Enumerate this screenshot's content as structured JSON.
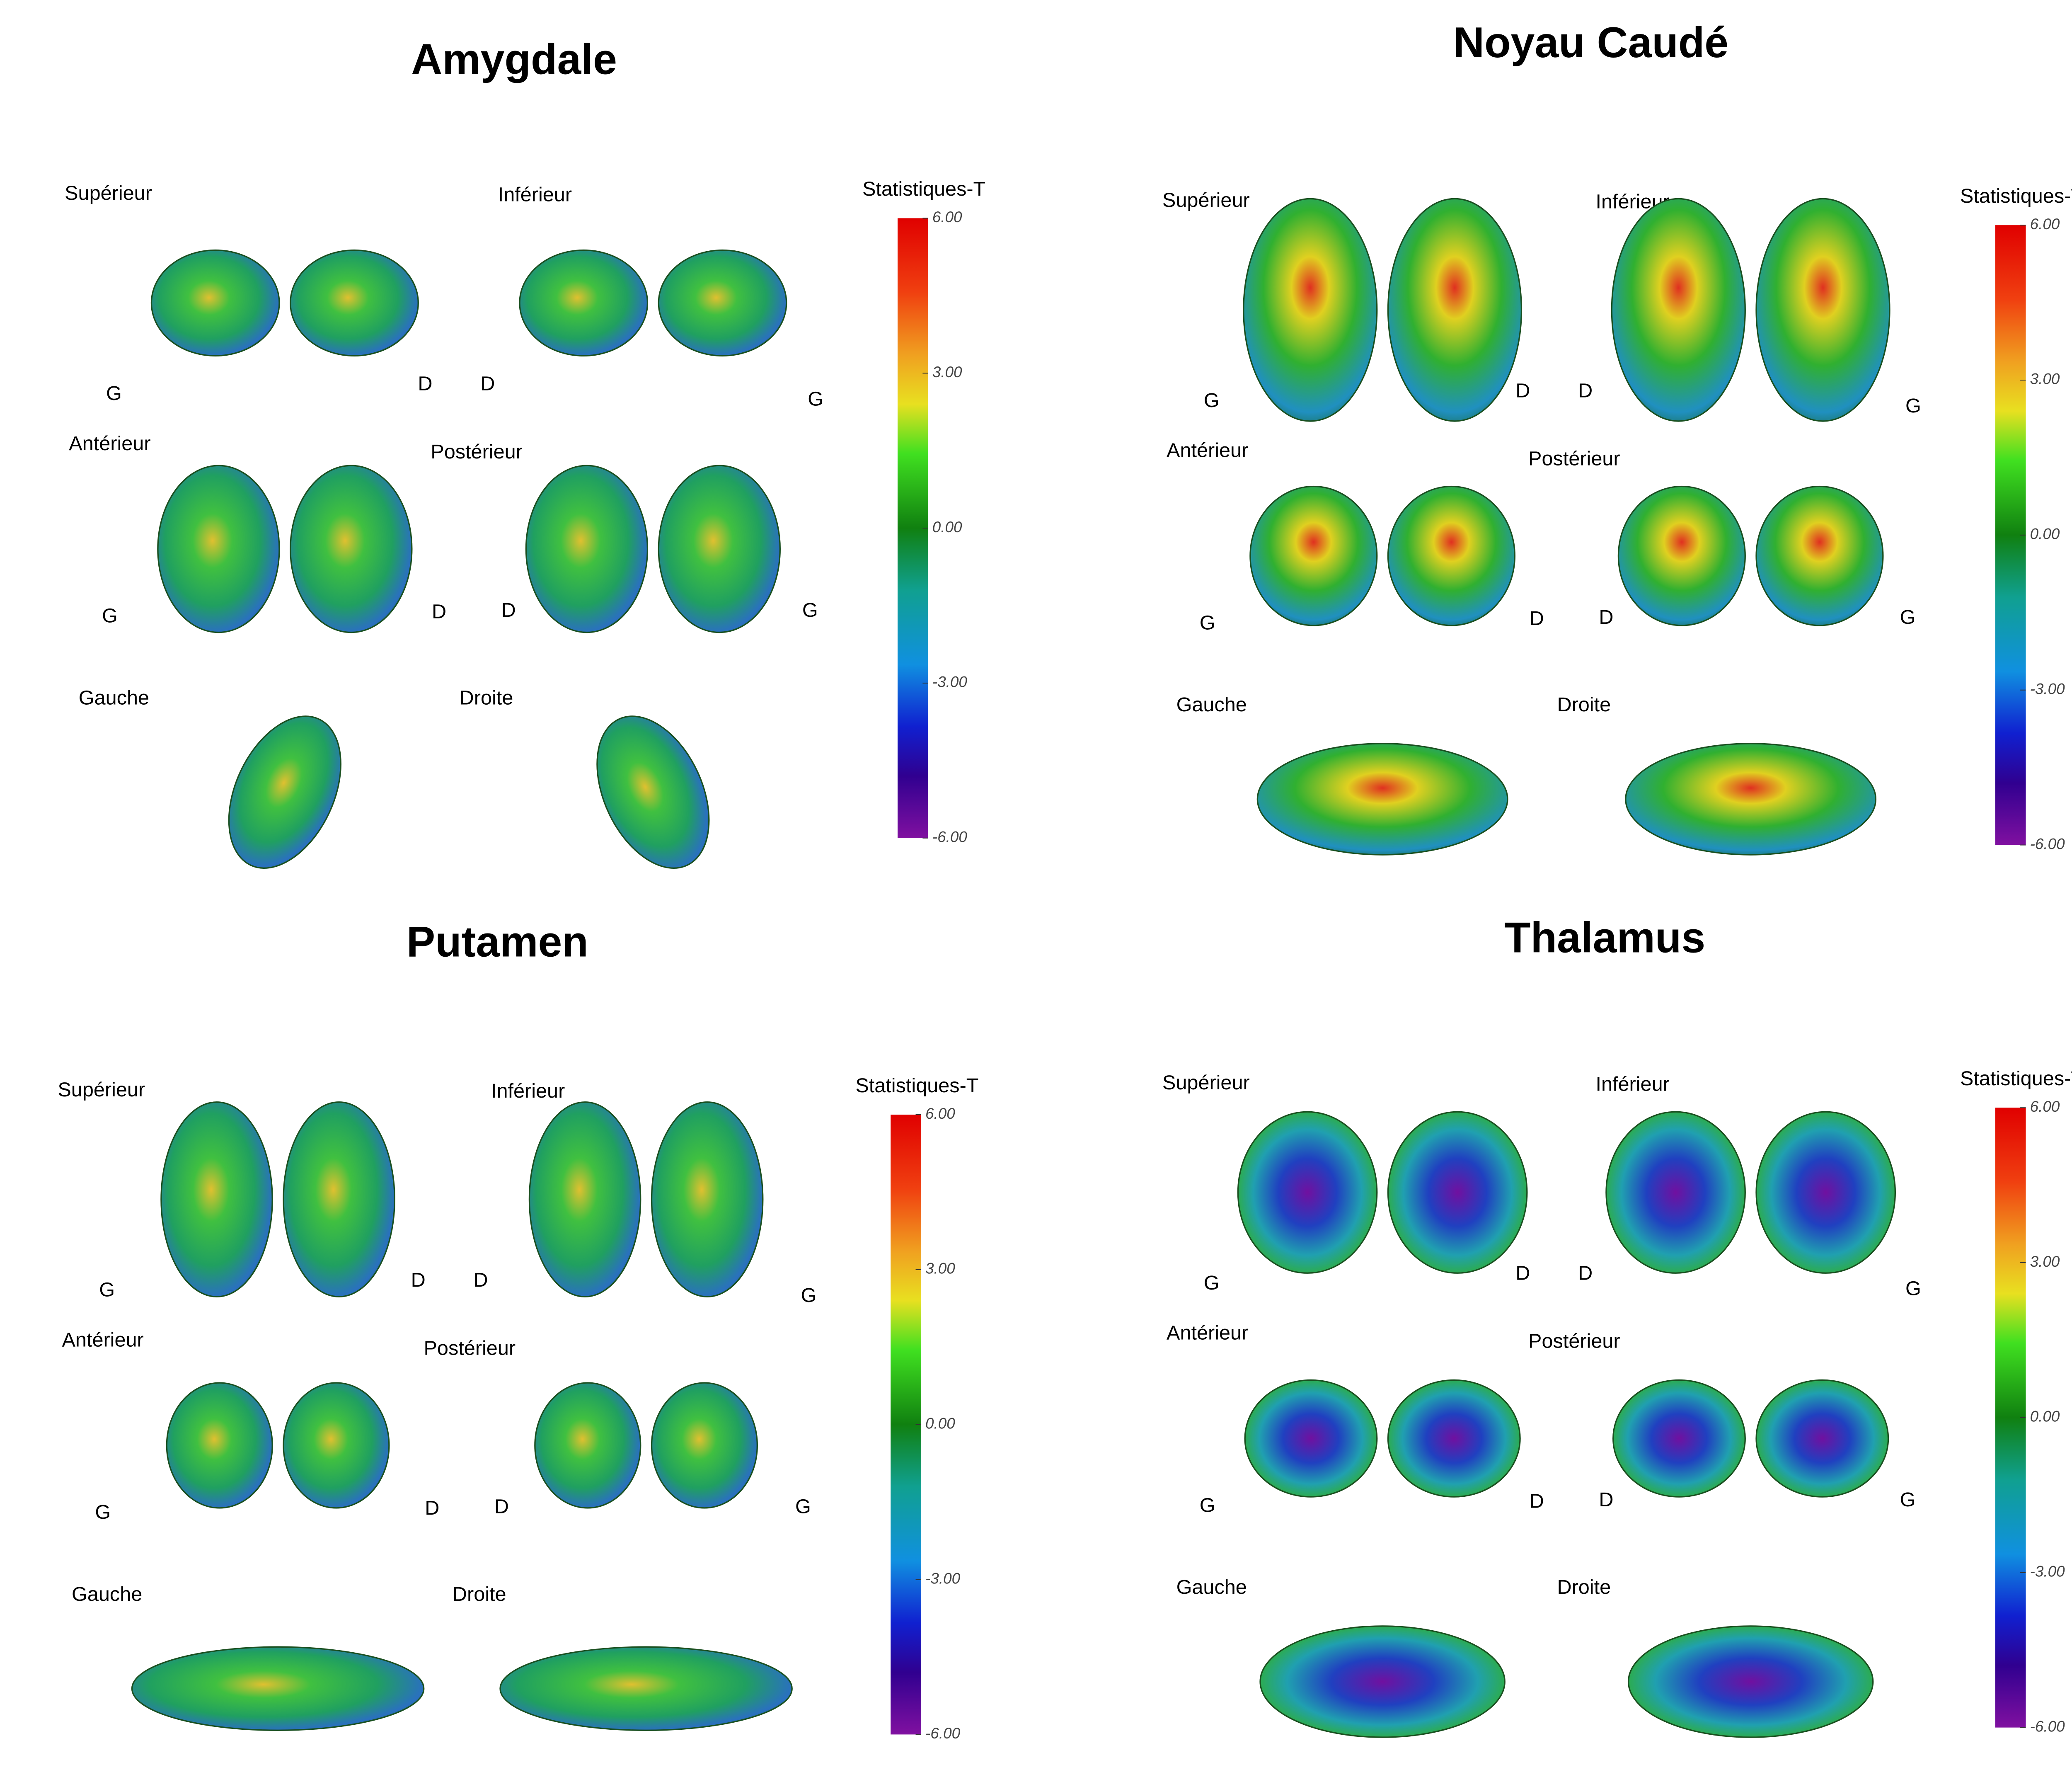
{
  "panels": [
    {
      "title": "Amygdale",
      "views": [
        {
          "label": "Supérieur",
          "sides": [
            "G",
            "D"
          ]
        },
        {
          "label": "Inférieur",
          "sides": [
            "D",
            "G"
          ]
        },
        {
          "label": "Antérieur",
          "sides": [
            "G",
            "D"
          ]
        },
        {
          "label": "Postérieur",
          "sides": [
            "D",
            "G"
          ]
        },
        {
          "label": "Gauche"
        },
        {
          "label": "Droite"
        }
      ],
      "colorbar": {
        "title": "Statistiques-T",
        "range": [
          -6,
          6
        ],
        "ticks": [
          {
            "value": 6,
            "label": "6.00"
          },
          {
            "value": 3,
            "label": "3.00"
          },
          {
            "value": 0,
            "label": "0.00"
          },
          {
            "value": -3,
            "label": "-3.00"
          },
          {
            "value": -6,
            "label": "-6.00"
          }
        ]
      }
    },
    {
      "title": "Noyau Caudé",
      "views": [
        {
          "label": "Supérieur",
          "sides": [
            "G",
            "D"
          ]
        },
        {
          "label": "Inférieur",
          "sides": [
            "D",
            "G"
          ]
        },
        {
          "label": "Antérieur",
          "sides": [
            "G",
            "D"
          ]
        },
        {
          "label": "Postérieur",
          "sides": [
            "D",
            "G"
          ]
        },
        {
          "label": "Gauche"
        },
        {
          "label": "Droite"
        }
      ],
      "colorbar": {
        "title": "Statistiques-T",
        "range": [
          -6,
          6
        ],
        "ticks": [
          {
            "value": 6,
            "label": "6.00"
          },
          {
            "value": 3,
            "label": "3.00"
          },
          {
            "value": 0,
            "label": "0.00"
          },
          {
            "value": -3,
            "label": "-3.00"
          },
          {
            "value": -6,
            "label": "-6.00"
          }
        ]
      }
    },
    {
      "title": "Putamen",
      "views": [
        {
          "label": "Supérieur",
          "sides": [
            "G",
            "D"
          ]
        },
        {
          "label": "Inférieur",
          "sides": [
            "D",
            "G"
          ]
        },
        {
          "label": "Antérieur",
          "sides": [
            "G",
            "D"
          ]
        },
        {
          "label": "Postérieur",
          "sides": [
            "D",
            "G"
          ]
        },
        {
          "label": "Gauche"
        },
        {
          "label": "Droite"
        }
      ],
      "colorbar": {
        "title": "Statistiques-T",
        "range": [
          -6,
          6
        ],
        "ticks": [
          {
            "value": 6,
            "label": "6.00"
          },
          {
            "value": 3,
            "label": "3.00"
          },
          {
            "value": 0,
            "label": "0.00"
          },
          {
            "value": -3,
            "label": "-3.00"
          },
          {
            "value": -6,
            "label": "-6.00"
          }
        ]
      }
    },
    {
      "title": "Thalamus",
      "views": [
        {
          "label": "Supérieur",
          "sides": [
            "G",
            "D"
          ]
        },
        {
          "label": "Inférieur",
          "sides": [
            "D",
            "G"
          ]
        },
        {
          "label": "Antérieur",
          "sides": [
            "G",
            "D"
          ]
        },
        {
          "label": "Postérieur",
          "sides": [
            "D",
            "G"
          ]
        },
        {
          "label": "Gauche"
        },
        {
          "label": "Droite"
        }
      ],
      "colorbar": {
        "title": "Statistiques-T",
        "range": [
          -6,
          6
        ],
        "ticks": [
          {
            "value": 6,
            "label": "6.00"
          },
          {
            "value": 3,
            "label": "3.00"
          },
          {
            "value": 0,
            "label": "0.00"
          },
          {
            "value": -3,
            "label": "-3.00"
          },
          {
            "value": -6,
            "label": "-6.00"
          }
        ]
      }
    }
  ]
}
